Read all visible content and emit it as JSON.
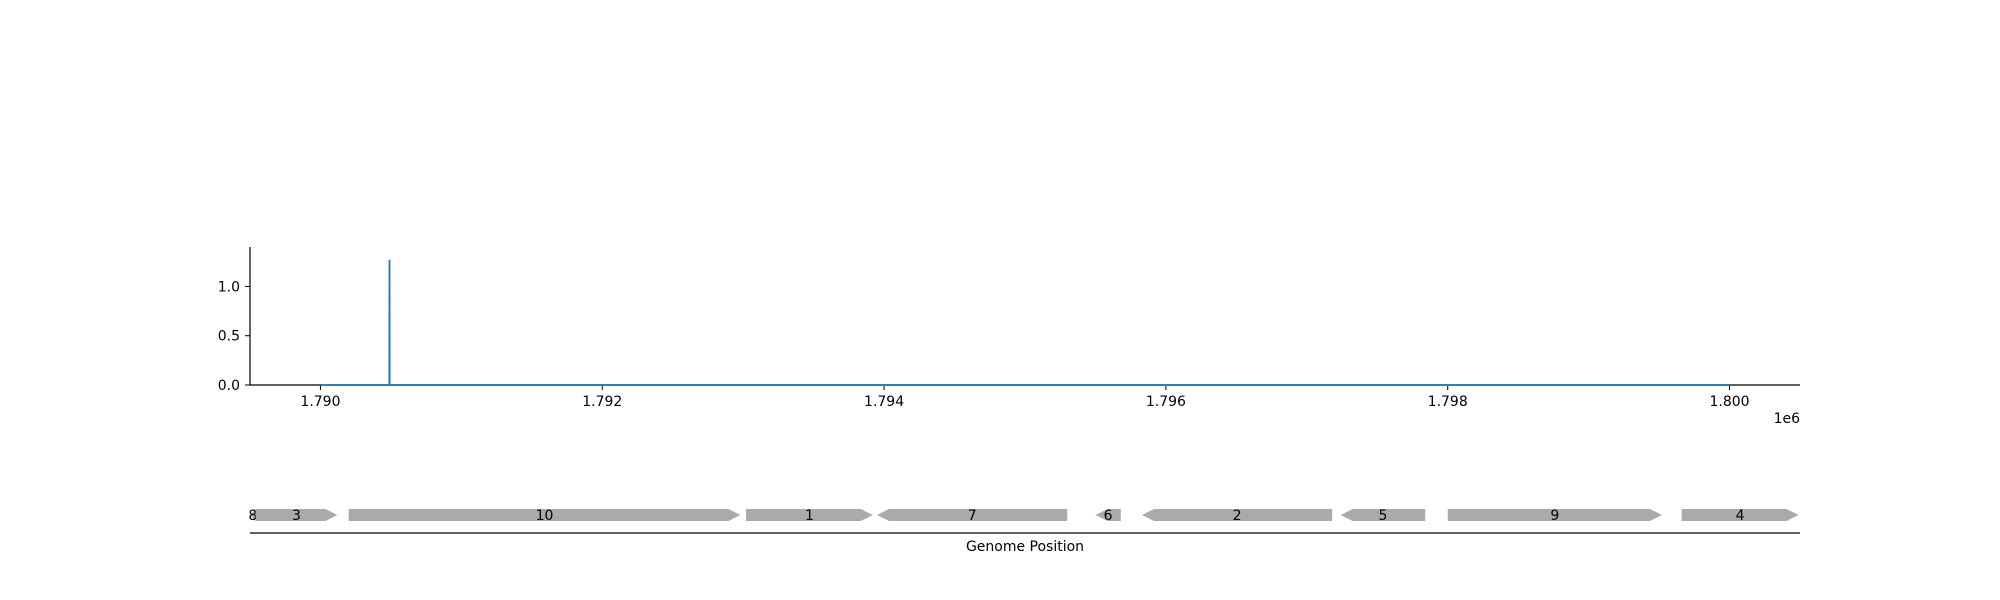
{
  "chart_data": [
    {
      "type": "line",
      "title": "",
      "xlabel": "",
      "ylabel": "",
      "x_offset_label": "1e6",
      "xlim": [
        1789500,
        1800500
      ],
      "ylim": [
        0,
        1.4
      ],
      "x_ticks": [
        1790000,
        1792000,
        1794000,
        1796000,
        1798000,
        1800000
      ],
      "x_tick_labels": [
        "1.790",
        "1.792",
        "1.794",
        "1.796",
        "1.798",
        "1.800"
      ],
      "y_ticks": [
        0,
        0.5,
        1
      ],
      "y_tick_labels": [
        "0.0",
        "0.5",
        "1.0"
      ],
      "grid": false,
      "series": [
        {
          "color": "#1f77b4",
          "x": [
            1790000,
            1790489,
            1790490,
            1790491,
            1800000
          ],
          "y": [
            0,
            0,
            1.27,
            0,
            0
          ]
        }
      ]
    },
    {
      "type": "gene-track",
      "xlabel": "Genome Position",
      "xlim": [
        1789500,
        1800500
      ],
      "gene_color": "#aaaaaa",
      "genes": [
        {
          "label": "8",
          "start": 1789500,
          "end": 1789540,
          "strand": "-"
        },
        {
          "label": "3",
          "start": 1789540,
          "end": 1790120,
          "strand": "+"
        },
        {
          "label": "10",
          "start": 1790200,
          "end": 1792980,
          "strand": "+"
        },
        {
          "label": "1",
          "start": 1793020,
          "end": 1793920,
          "strand": "+"
        },
        {
          "label": "7",
          "start": 1793950,
          "end": 1795300,
          "strand": "-"
        },
        {
          "label": "6",
          "start": 1795500,
          "end": 1795680,
          "strand": "-"
        },
        {
          "label": "2",
          "start": 1795830,
          "end": 1797180,
          "strand": "-"
        },
        {
          "label": "5",
          "start": 1797240,
          "end": 1797840,
          "strand": "-"
        },
        {
          "label": "9",
          "start": 1798000,
          "end": 1799520,
          "strand": "+"
        },
        {
          "label": "4",
          "start": 1799660,
          "end": 1800490,
          "strand": "+"
        }
      ]
    }
  ]
}
